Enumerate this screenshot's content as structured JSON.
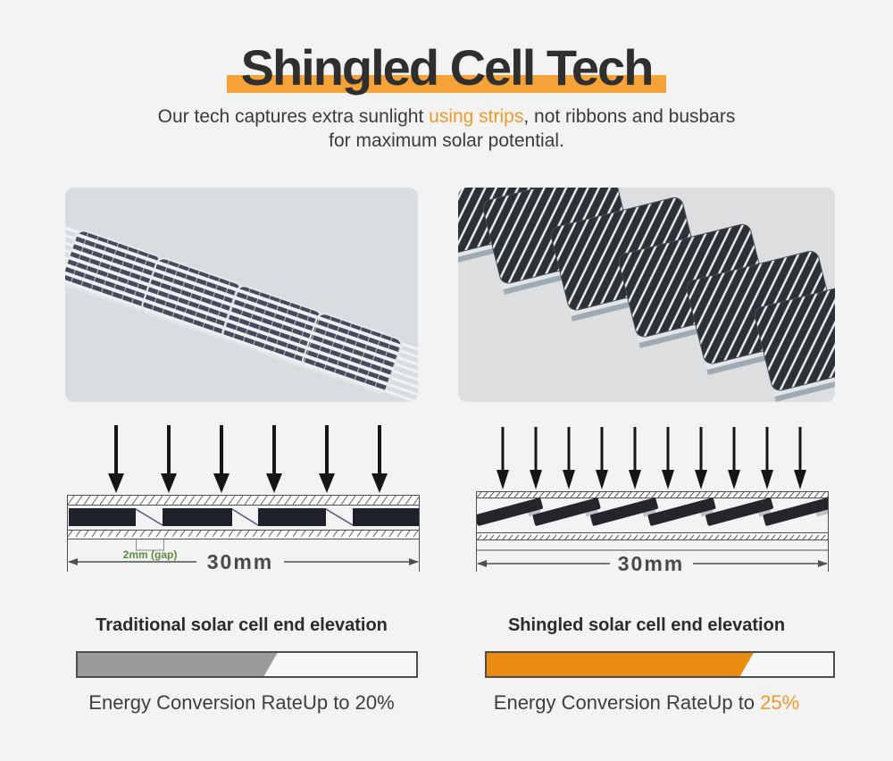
{
  "colors": {
    "page_background": "#F3F3F4",
    "accent_orange": "#F5A238",
    "deep_orange": "#E88B0E",
    "orange_text": "#F0992B",
    "gap_green": "#5C8C3E",
    "gray_fill": "#9B9B9B"
  },
  "header": {
    "title": "Shingled Cell Tech",
    "subtitle_line1_pre": "Our tech captures extra sunlight ",
    "subtitle_line1_highlight": "using strips",
    "subtitle_line1_post": ", not ribbons and busbars",
    "subtitle_line2": "for maximum solar potential."
  },
  "photos": {
    "traditional_cells": 4,
    "shingled_cells": 6
  },
  "diagrams": {
    "traditional": {
      "heading": "Traditional solar cell end elevation",
      "sun_arrows": 6,
      "cells": 4,
      "gap_label": "2mm (gap)",
      "width_label": "30mm",
      "rate_prefix": "Energy Conversion RateUp to ",
      "rate_value": "20%",
      "bar_fill_percent": 59
    },
    "shingled": {
      "heading": "Shingled solar cell end elevation",
      "sun_arrows": 10,
      "cells": 6,
      "width_label": "30mm",
      "rate_prefix": "Energy Conversion RateUp to ",
      "rate_value": "25%",
      "bar_fill_percent": 77
    }
  }
}
